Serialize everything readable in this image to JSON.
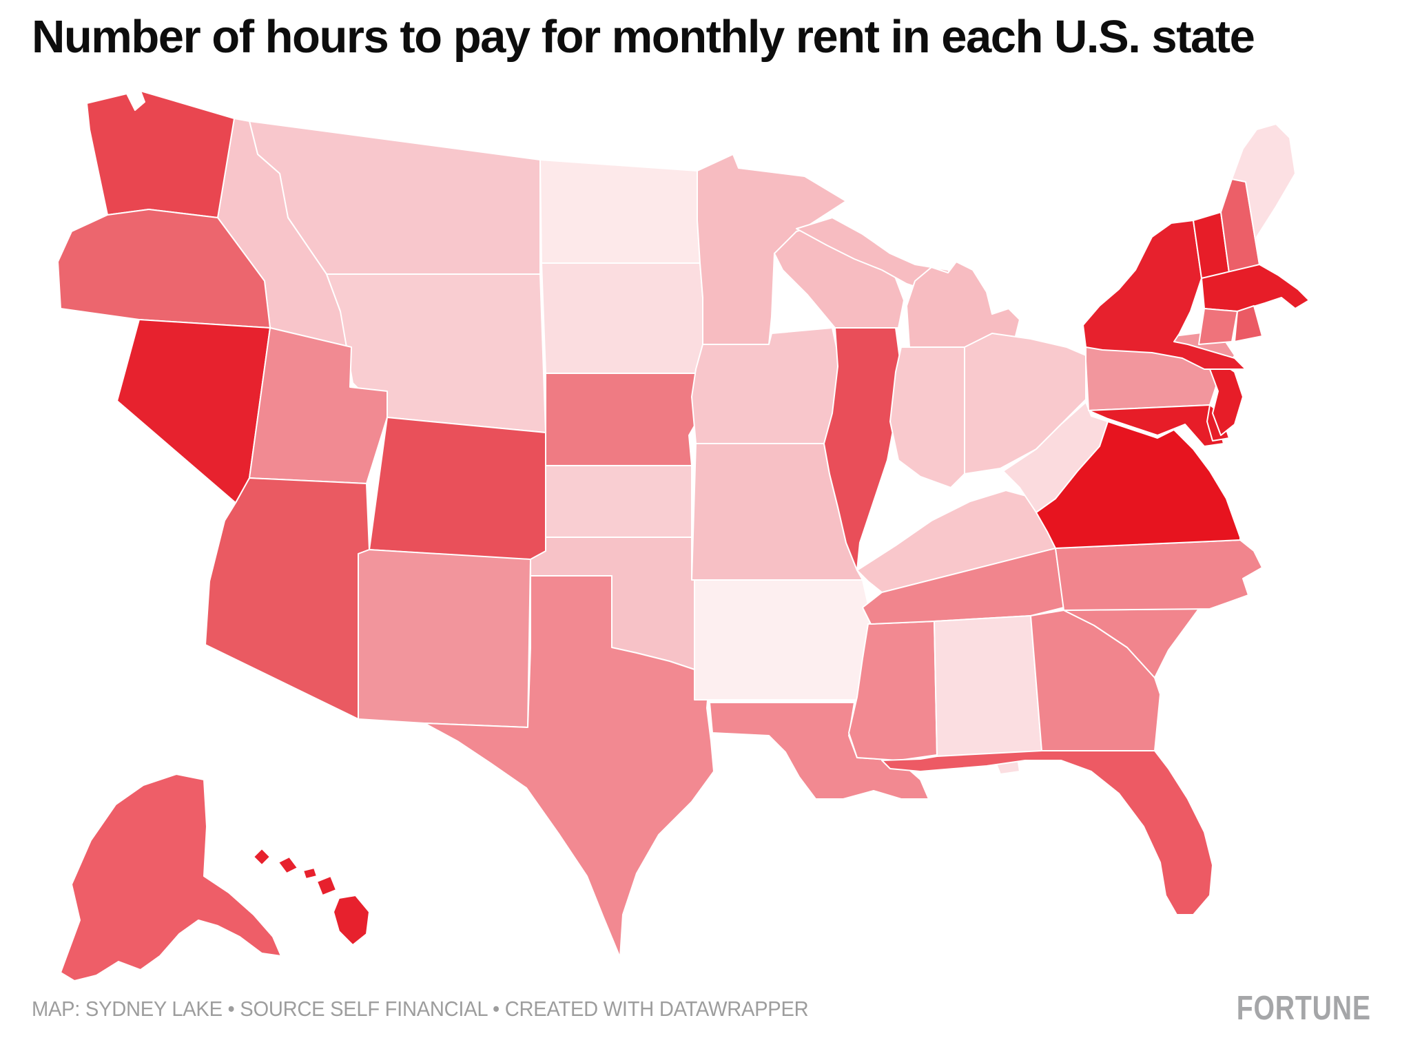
{
  "page": {
    "title": "Number of hours to pay for monthly rent in each U.S. state",
    "background": "#ffffff"
  },
  "footer": {
    "credit": "MAP: SYDNEY LAKE • SOURCE SELF FINANCIAL • CREATED WITH DATAWRAPPER",
    "brand": "FORTUNE"
  },
  "chart_data": {
    "type": "choropleth-map",
    "title": "Number of hours to pay for monthly rent in each U.S. state",
    "region": "United States (50 states, Albers-style projection with Alaska and Hawaii insets)",
    "legend": "none shown",
    "value_encoding": "color intensity encodes number of hours of work needed to pay monthly rent; darker red = more hours, pale pink = fewer hours; no numeric labels are visible on the map",
    "palette": {
      "min_color": "#fdeff0",
      "max_color": "#e7141f",
      "border_color": "#ffffff"
    },
    "states": [
      {
        "abbr": "WA",
        "name": "Washington",
        "fill": "#e94650"
      },
      {
        "abbr": "OR",
        "name": "Oregon",
        "fill": "#ec666e"
      },
      {
        "abbr": "CA",
        "name": "California",
        "fill": "#e71d28"
      },
      {
        "abbr": "NV",
        "name": "Nevada",
        "fill": "#e7222e"
      },
      {
        "abbr": "ID",
        "name": "Idaho",
        "fill": "#f8c5ca"
      },
      {
        "abbr": "MT",
        "name": "Montana",
        "fill": "#f8c7cc"
      },
      {
        "abbr": "WY",
        "name": "Wyoming",
        "fill": "#f9cdd1"
      },
      {
        "abbr": "UT",
        "name": "Utah",
        "fill": "#f18a92"
      },
      {
        "abbr": "CO",
        "name": "Colorado",
        "fill": "#e9505a"
      },
      {
        "abbr": "AZ",
        "name": "Arizona",
        "fill": "#ea5a62"
      },
      {
        "abbr": "NM",
        "name": "New Mexico",
        "fill": "#f2959c"
      },
      {
        "abbr": "ND",
        "name": "North Dakota",
        "fill": "#fde9ea"
      },
      {
        "abbr": "SD",
        "name": "South Dakota",
        "fill": "#fbdde0"
      },
      {
        "abbr": "NE",
        "name": "Nebraska",
        "fill": "#ef7b83"
      },
      {
        "abbr": "KS",
        "name": "Kansas",
        "fill": "#f9ced2"
      },
      {
        "abbr": "OK",
        "name": "Oklahoma",
        "fill": "#f7c2c7"
      },
      {
        "abbr": "TX",
        "name": "Texas",
        "fill": "#f28991"
      },
      {
        "abbr": "MN",
        "name": "Minnesota",
        "fill": "#f7bcc1"
      },
      {
        "abbr": "IA",
        "name": "Iowa",
        "fill": "#f8c6cb"
      },
      {
        "abbr": "MO",
        "name": "Missouri",
        "fill": "#f7c0c5"
      },
      {
        "abbr": "AR",
        "name": "Arkansas",
        "fill": "#fdeff0"
      },
      {
        "abbr": "LA",
        "name": "Louisiana",
        "fill": "#f28991"
      },
      {
        "abbr": "WI",
        "name": "Wisconsin",
        "fill": "#f7bcc1"
      },
      {
        "abbr": "IL",
        "name": "Illinois",
        "fill": "#e94e59"
      },
      {
        "abbr": "MS",
        "name": "Mississippi",
        "fill": "#f28991"
      },
      {
        "abbr": "MI",
        "name": "Michigan",
        "fill": "#f7bcc1"
      },
      {
        "abbr": "IN",
        "name": "Indiana",
        "fill": "#f9c9cd"
      },
      {
        "abbr": "OH",
        "name": "Ohio",
        "fill": "#f9c9cd"
      },
      {
        "abbr": "KY",
        "name": "Kentucky",
        "fill": "#f9c7cb"
      },
      {
        "abbr": "TN",
        "name": "Tennessee",
        "fill": "#f1858d"
      },
      {
        "abbr": "AL",
        "name": "Alabama",
        "fill": "#fbdee1"
      },
      {
        "abbr": "GA",
        "name": "Georgia",
        "fill": "#f1858d"
      },
      {
        "abbr": "FL",
        "name": "Florida",
        "fill": "#ed5a64"
      },
      {
        "abbr": "SC",
        "name": "South Carolina",
        "fill": "#f1858d"
      },
      {
        "abbr": "NC",
        "name": "North Carolina",
        "fill": "#f1858d"
      },
      {
        "abbr": "WV",
        "name": "West Virginia",
        "fill": "#fbdbde"
      },
      {
        "abbr": "VA",
        "name": "Virginia",
        "fill": "#e7141f"
      },
      {
        "abbr": "PA",
        "name": "Pennsylvania",
        "fill": "#f2969d"
      },
      {
        "abbr": "MD",
        "name": "Maryland",
        "fill": "#e71d28"
      },
      {
        "abbr": "DE",
        "name": "Delaware",
        "fill": "#e71d28"
      },
      {
        "abbr": "NJ",
        "name": "New Jersey",
        "fill": "#e71d28"
      },
      {
        "abbr": "NY",
        "name": "New York",
        "fill": "#e7212d"
      },
      {
        "abbr": "VT",
        "name": "Vermont",
        "fill": "#e71d28"
      },
      {
        "abbr": "NH",
        "name": "New Hampshire",
        "fill": "#ec5f68"
      },
      {
        "abbr": "ME",
        "name": "Maine",
        "fill": "#fce0e3"
      },
      {
        "abbr": "MA",
        "name": "Massachusetts",
        "fill": "#e71d28"
      },
      {
        "abbr": "CT",
        "name": "Connecticut",
        "fill": "#ef737b"
      },
      {
        "abbr": "RI",
        "name": "Rhode Island",
        "fill": "#eb5a64"
      },
      {
        "abbr": "AK",
        "name": "Alaska",
        "fill": "#ee5e68"
      },
      {
        "abbr": "HI",
        "name": "Hawaii",
        "fill": "#e7212d"
      }
    ]
  }
}
